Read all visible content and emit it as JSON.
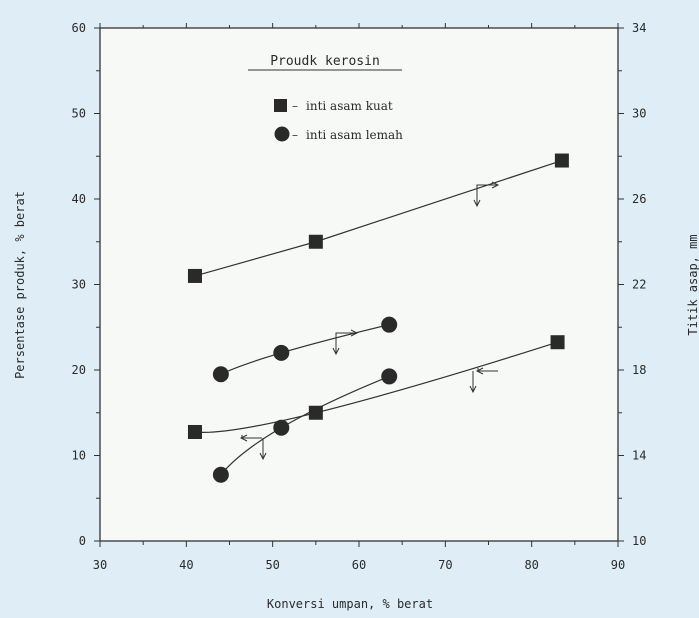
{
  "chart_data": {
    "type": "scatter",
    "title": "Proudk kerosin",
    "xlabel": "Konversi umpan, % berat",
    "ylabel": "Persentase produk, % berat",
    "y2label": "Titik asap, mm",
    "xlim": [
      30,
      90
    ],
    "ylim": [
      0,
      60
    ],
    "y2lim": [
      10,
      34
    ],
    "xticks": [
      "30",
      "40",
      "50",
      "60",
      "70",
      "80",
      "90"
    ],
    "yticks": [
      "0",
      "10",
      "20",
      "30",
      "40",
      "50",
      "60"
    ],
    "y2ticks": [
      "10",
      "14",
      "18",
      "22",
      "26",
      "30",
      "34"
    ],
    "grid": false,
    "legend_position": "top-center",
    "series": [
      {
        "name": "inti asam kuat",
        "marker": "square",
        "axis": "left",
        "x": [
          41,
          55,
          83.5
        ],
        "y": [
          31,
          35,
          44.5
        ]
      },
      {
        "name": "inti asam kuat",
        "marker": "square",
        "axis": "right",
        "x": [
          41,
          55,
          83
        ],
        "y": [
          15.1,
          16,
          19.3
        ]
      },
      {
        "name": "inti asam lemah",
        "marker": "circle",
        "axis": "left",
        "x": [
          44,
          51,
          63.5
        ],
        "y": [
          19.5,
          22,
          25.3
        ]
      },
      {
        "name": "inti asam lemah",
        "marker": "circle",
        "axis": "right",
        "x": [
          44,
          51,
          63.5
        ],
        "y": [
          13.1,
          15.3,
          17.7
        ]
      }
    ]
  }
}
